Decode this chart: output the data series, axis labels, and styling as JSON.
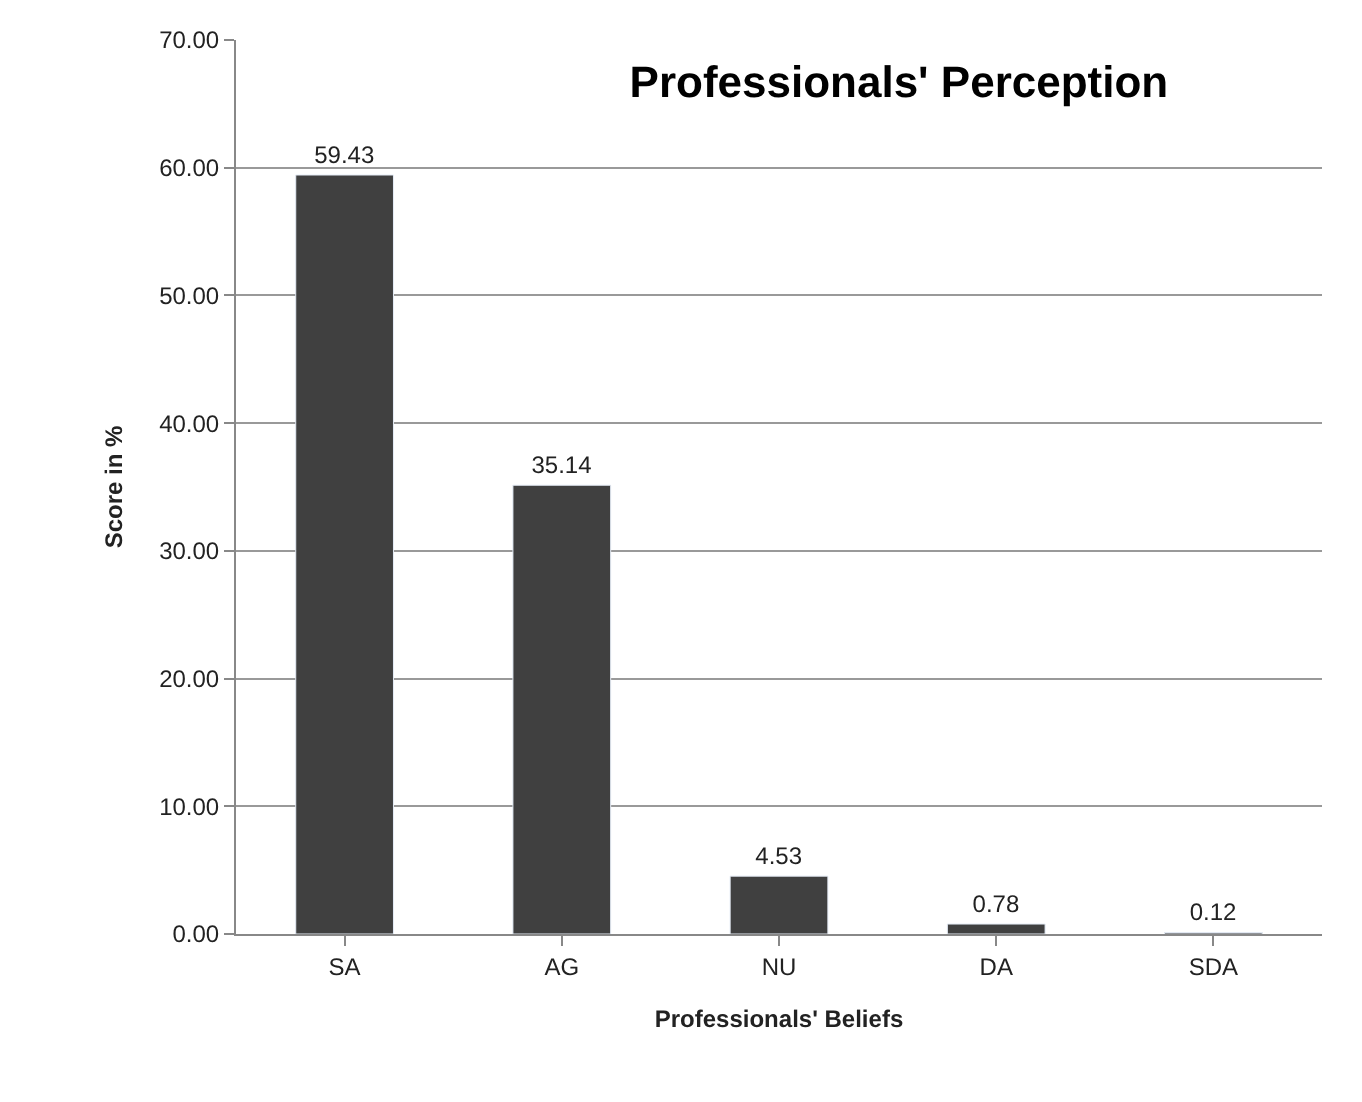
{
  "chart_data": {
    "type": "bar",
    "title": "Professionals' Perception",
    "xlabel": "Professionals' Beliefs",
    "ylabel": "Score in %",
    "categories": [
      "SA",
      "AG",
      "NU",
      "DA",
      "SDA"
    ],
    "values": [
      59.43,
      35.14,
      4.53,
      0.78,
      0.12
    ],
    "value_labels": [
      "59.43",
      "35.14",
      "4.53",
      "0.78",
      "0.12"
    ],
    "color": "#404040",
    "ylim": [
      0,
      70
    ],
    "yticks": [
      {
        "value": 0,
        "label": "0.00"
      },
      {
        "value": 10,
        "label": "10.00"
      },
      {
        "value": 20,
        "label": "20.00"
      },
      {
        "value": 30,
        "label": "30.00"
      },
      {
        "value": 40,
        "label": "40.00"
      },
      {
        "value": 50,
        "label": "50.00"
      },
      {
        "value": 60,
        "label": "60.00"
      },
      {
        "value": 70,
        "label": "70.00"
      }
    ],
    "grid": "y"
  }
}
